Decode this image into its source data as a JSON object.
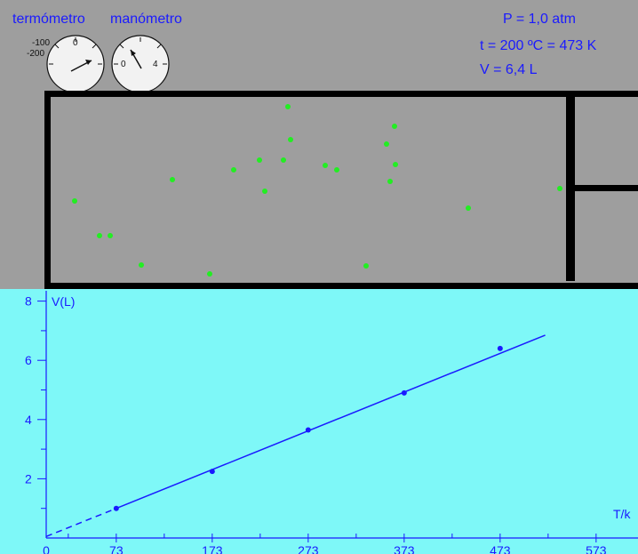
{
  "labels": {
    "thermometer": "termómetro",
    "manometer": "manómetro"
  },
  "state": {
    "pressure": "P = 1,0 atm",
    "temperature": "t =  200 ºC = 473 K",
    "volume": "V = 6,4 L"
  },
  "thermometer_dial": {
    "scale_labels": [
      "-100",
      "-200",
      "0"
    ],
    "reading_celsius": 200
  },
  "manometer_dial": {
    "scale_labels": [
      "0",
      "4"
    ],
    "reading_atm": 1.0
  },
  "colors": {
    "top_bg": "#9e9e9e",
    "graph_bg": "#7ef8f8",
    "text_blue": "#1a1aff",
    "molecule_green": "#22ee22",
    "wall_black": "#000000"
  },
  "chart_data": {
    "type": "line",
    "title": "",
    "xlabel": "T/k",
    "ylabel": "V(L)",
    "xlim": [
      0,
      620
    ],
    "ylim": [
      0,
      8.5
    ],
    "x_ticks": [
      0,
      73,
      173,
      273,
      373,
      473,
      573
    ],
    "y_ticks": [
      2,
      4,
      6,
      8
    ],
    "points": [
      {
        "x": 73,
        "y": 1.0
      },
      {
        "x": 173,
        "y": 2.25
      },
      {
        "x": 273,
        "y": 3.65
      },
      {
        "x": 373,
        "y": 4.9
      },
      {
        "x": 473,
        "y": 6.4
      }
    ],
    "fit_line": {
      "x_start": 73,
      "x_end": 520,
      "y_start": 1.0,
      "y_end": 6.85
    },
    "extrapolation": {
      "x_start": 0,
      "x_end": 73,
      "y_start": 0.05,
      "y_end": 1.0,
      "style": "dashed"
    }
  }
}
